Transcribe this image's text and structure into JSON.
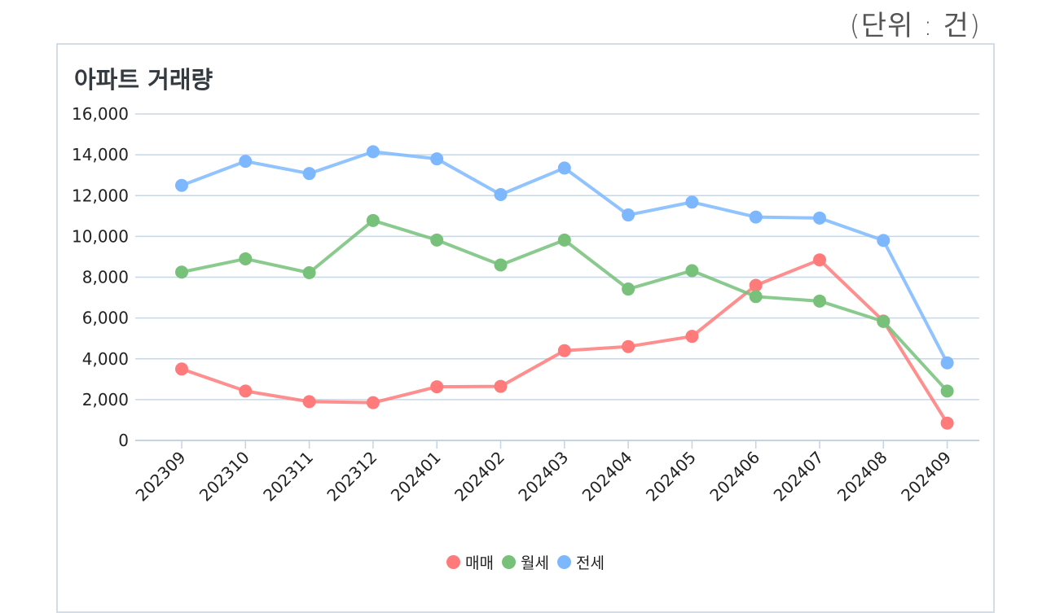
{
  "unit_label": "(단위 : 건)",
  "chart_data": {
    "type": "line",
    "title": "아파트 거래량",
    "xlabel": "",
    "ylabel": "",
    "ylim": [
      0,
      16000
    ],
    "yticks": [
      "16,000",
      "14,000",
      "12,000",
      "10,000",
      "8,000",
      "6,000",
      "4,000",
      "2,000",
      "0"
    ],
    "ytick_values": [
      16000,
      14000,
      12000,
      10000,
      8000,
      6000,
      4000,
      2000,
      0
    ],
    "categories": [
      "202309",
      "202310",
      "202311",
      "202312",
      "202401",
      "202402",
      "202403",
      "202404",
      "202405",
      "202406",
      "202407",
      "202408",
      "202409"
    ],
    "grid": true,
    "legend_position": "bottom",
    "series": [
      {
        "name": "매매",
        "color": "#ff7a7a",
        "values": [
          3500,
          2420,
          1900,
          1850,
          2630,
          2650,
          4400,
          4600,
          5100,
          7600,
          8850,
          5850,
          850
        ]
      },
      {
        "name": "월세",
        "color": "#77c17a",
        "values": [
          8250,
          8900,
          8220,
          10780,
          9820,
          8600,
          9820,
          7420,
          8320,
          7050,
          6830,
          5830,
          2420
        ]
      },
      {
        "name": "전세",
        "color": "#7db8ff",
        "values": [
          12500,
          13680,
          13080,
          14150,
          13800,
          12050,
          13350,
          11050,
          11680,
          10950,
          10900,
          9800,
          3800
        ]
      }
    ]
  }
}
